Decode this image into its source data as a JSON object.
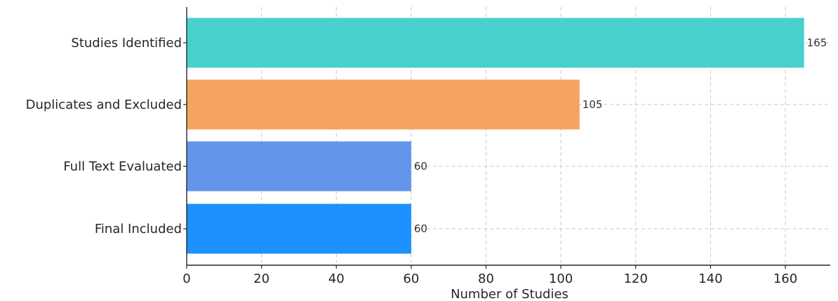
{
  "chart_data": {
    "type": "bar",
    "orientation": "horizontal",
    "title": "",
    "xlabel": "Number of Studies",
    "ylabel": "",
    "categories": [
      "Studies Identified",
      "Duplicates and Excluded",
      "Full Text Evaluated",
      "Final Included"
    ],
    "values": [
      165,
      105,
      60,
      60
    ],
    "data_labels": [
      "165",
      "105",
      "60",
      "60"
    ],
    "colors": [
      "#48d1cc",
      "#f4a460",
      "#6495ed",
      "#1e90ff"
    ],
    "xlim": [
      0,
      172
    ],
    "xticks": [
      0,
      20,
      40,
      60,
      80,
      100,
      120,
      140,
      160
    ],
    "xtick_labels": [
      "0",
      "20",
      "40",
      "60",
      "80",
      "100",
      "120",
      "140",
      "160"
    ],
    "grid": true,
    "legend": "none"
  }
}
